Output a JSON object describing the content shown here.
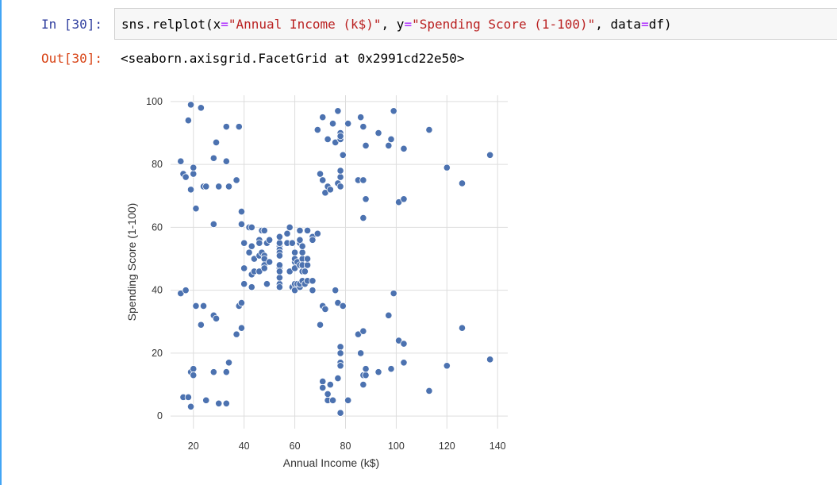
{
  "cell": {
    "in_prompt": "In [30]:",
    "out_prompt": "Out[30]:",
    "code": {
      "t1": "sns.relplot(x",
      "t2": "=",
      "t3": "\"Annual Income (k$)\"",
      "t4": ", y",
      "t5": "=",
      "t6": "\"Spending Score (1-100)\"",
      "t7": ", data",
      "t8": "=",
      "t9": "df)"
    },
    "output_text": "<seaborn.axisgrid.FacetGrid at 0x2991cd22e50>"
  },
  "colors": {
    "point": "#4c72b0",
    "grid": "#dddddd",
    "in_prompt": "#303f9f",
    "out_prompt": "#d84315"
  },
  "chart_data": {
    "type": "scatter",
    "xlabel": "Annual Income (k$)",
    "ylabel": "Spending Score (1-100)",
    "xlim": [
      11,
      144
    ],
    "ylim": [
      -4,
      102
    ],
    "xticks": [
      20,
      40,
      60,
      80,
      100,
      120,
      140
    ],
    "yticks": [
      0,
      20,
      40,
      60,
      80,
      100
    ],
    "grid": true,
    "points": [
      [
        15,
        39
      ],
      [
        15,
        81
      ],
      [
        16,
        6
      ],
      [
        16,
        77
      ],
      [
        17,
        40
      ],
      [
        17,
        76
      ],
      [
        18,
        6
      ],
      [
        18,
        94
      ],
      [
        19,
        3
      ],
      [
        19,
        72
      ],
      [
        19,
        14
      ],
      [
        19,
        99
      ],
      [
        20,
        15
      ],
      [
        20,
        77
      ],
      [
        20,
        13
      ],
      [
        20,
        79
      ],
      [
        21,
        35
      ],
      [
        21,
        66
      ],
      [
        23,
        29
      ],
      [
        23,
        98
      ],
      [
        24,
        35
      ],
      [
        24,
        73
      ],
      [
        25,
        5
      ],
      [
        25,
        73
      ],
      [
        28,
        14
      ],
      [
        28,
        82
      ],
      [
        28,
        32
      ],
      [
        28,
        61
      ],
      [
        29,
        31
      ],
      [
        29,
        87
      ],
      [
        30,
        4
      ],
      [
        30,
        73
      ],
      [
        33,
        4
      ],
      [
        33,
        92
      ],
      [
        33,
        14
      ],
      [
        33,
        81
      ],
      [
        34,
        17
      ],
      [
        34,
        73
      ],
      [
        37,
        26
      ],
      [
        37,
        75
      ],
      [
        38,
        35
      ],
      [
        38,
        92
      ],
      [
        39,
        36
      ],
      [
        39,
        61
      ],
      [
        39,
        28
      ],
      [
        39,
        65
      ],
      [
        40,
        55
      ],
      [
        40,
        47
      ],
      [
        40,
        42
      ],
      [
        40,
        42
      ],
      [
        42,
        52
      ],
      [
        42,
        60
      ],
      [
        43,
        54
      ],
      [
        43,
        60
      ],
      [
        43,
        45
      ],
      [
        43,
        41
      ],
      [
        44,
        50
      ],
      [
        44,
        46
      ],
      [
        46,
        51
      ],
      [
        46,
        46
      ],
      [
        46,
        56
      ],
      [
        46,
        55
      ],
      [
        47,
        52
      ],
      [
        47,
        59
      ],
      [
        48,
        51
      ],
      [
        48,
        59
      ],
      [
        48,
        50
      ],
      [
        48,
        48
      ],
      [
        48,
        59
      ],
      [
        48,
        47
      ],
      [
        49,
        55
      ],
      [
        49,
        42
      ],
      [
        50,
        49
      ],
      [
        50,
        56
      ],
      [
        54,
        47
      ],
      [
        54,
        54
      ],
      [
        54,
        53
      ],
      [
        54,
        48
      ],
      [
        54,
        52
      ],
      [
        54,
        42
      ],
      [
        54,
        51
      ],
      [
        54,
        55
      ],
      [
        54,
        41
      ],
      [
        54,
        44
      ],
      [
        54,
        57
      ],
      [
        54,
        46
      ],
      [
        57,
        58
      ],
      [
        57,
        55
      ],
      [
        58,
        60
      ],
      [
        58,
        46
      ],
      [
        59,
        55
      ],
      [
        59,
        41
      ],
      [
        60,
        49
      ],
      [
        60,
        40
      ],
      [
        60,
        42
      ],
      [
        60,
        52
      ],
      [
        60,
        47
      ],
      [
        60,
        50
      ],
      [
        61,
        42
      ],
      [
        61,
        49
      ],
      [
        62,
        41
      ],
      [
        62,
        48
      ],
      [
        62,
        59
      ],
      [
        62,
        55
      ],
      [
        62,
        56
      ],
      [
        62,
        42
      ],
      [
        63,
        50
      ],
      [
        63,
        46
      ],
      [
        63,
        43
      ],
      [
        63,
        48
      ],
      [
        63,
        52
      ],
      [
        63,
        54
      ],
      [
        64,
        42
      ],
      [
        64,
        46
      ],
      [
        65,
        48
      ],
      [
        65,
        50
      ],
      [
        65,
        43
      ],
      [
        65,
        59
      ],
      [
        67,
        43
      ],
      [
        67,
        57
      ],
      [
        67,
        56
      ],
      [
        67,
        40
      ],
      [
        69,
        58
      ],
      [
        69,
        91
      ],
      [
        70,
        29
      ],
      [
        70,
        77
      ],
      [
        71,
        35
      ],
      [
        71,
        95
      ],
      [
        71,
        11
      ],
      [
        71,
        75
      ],
      [
        71,
        9
      ],
      [
        71,
        75
      ],
      [
        72,
        34
      ],
      [
        72,
        71
      ],
      [
        73,
        5
      ],
      [
        73,
        88
      ],
      [
        73,
        7
      ],
      [
        73,
        73
      ],
      [
        74,
        10
      ],
      [
        74,
        72
      ],
      [
        75,
        5
      ],
      [
        75,
        93
      ],
      [
        76,
        40
      ],
      [
        76,
        87
      ],
      [
        77,
        12
      ],
      [
        77,
        97
      ],
      [
        77,
        36
      ],
      [
        77,
        74
      ],
      [
        78,
        22
      ],
      [
        78,
        90
      ],
      [
        78,
        17
      ],
      [
        78,
        88
      ],
      [
        78,
        20
      ],
      [
        78,
        76
      ],
      [
        78,
        16
      ],
      [
        78,
        89
      ],
      [
        78,
        1
      ],
      [
        78,
        78
      ],
      [
        78,
        1
      ],
      [
        78,
        73
      ],
      [
        79,
        35
      ],
      [
        79,
        83
      ],
      [
        81,
        5
      ],
      [
        81,
        93
      ],
      [
        85,
        26
      ],
      [
        85,
        75
      ],
      [
        86,
        20
      ],
      [
        86,
        95
      ],
      [
        87,
        27
      ],
      [
        87,
        63
      ],
      [
        87,
        13
      ],
      [
        87,
        75
      ],
      [
        87,
        10
      ],
      [
        87,
        92
      ],
      [
        88,
        13
      ],
      [
        88,
        86
      ],
      [
        88,
        15
      ],
      [
        88,
        69
      ],
      [
        93,
        14
      ],
      [
        93,
        90
      ],
      [
        97,
        32
      ],
      [
        97,
        86
      ],
      [
        98,
        15
      ],
      [
        98,
        88
      ],
      [
        99,
        39
      ],
      [
        99,
        97
      ],
      [
        101,
        24
      ],
      [
        101,
        68
      ],
      [
        103,
        17
      ],
      [
        103,
        85
      ],
      [
        103,
        23
      ],
      [
        103,
        69
      ],
      [
        113,
        8
      ],
      [
        113,
        91
      ],
      [
        120,
        16
      ],
      [
        120,
        79
      ],
      [
        126,
        28
      ],
      [
        126,
        74
      ],
      [
        137,
        18
      ],
      [
        137,
        83
      ]
    ]
  }
}
